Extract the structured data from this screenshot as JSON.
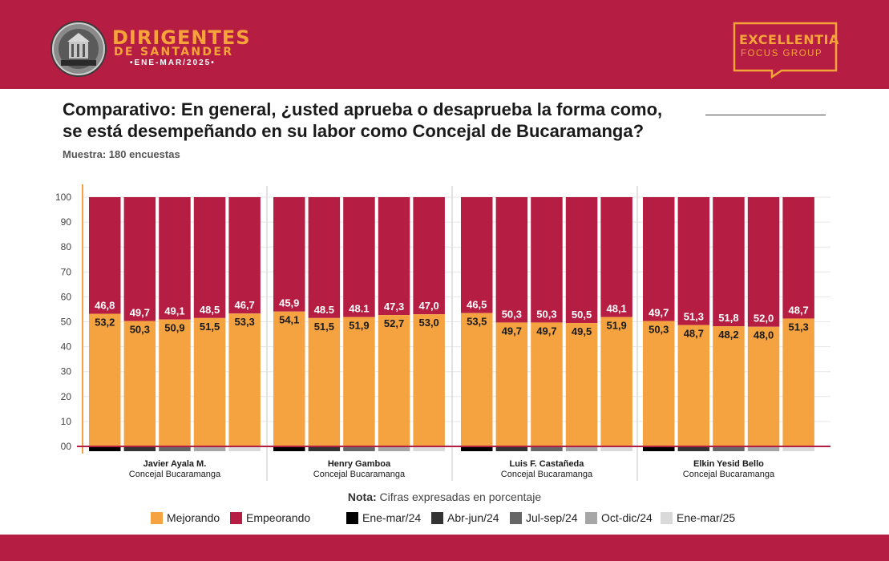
{
  "header": {
    "brand_title": "DIRIGENTES",
    "brand_subtitle": "DE SANTANDER",
    "brand_period": "•ENE-MAR/2025•",
    "seal_text": "SANTANDER",
    "company_name": "EXCELLENTIA",
    "company_sub": "FOCUS GROUP",
    "colors": {
      "bar": "#b51d42",
      "brand": "#f6a43a"
    }
  },
  "title_line1": "Comparativo: En general, ¿usted aprueba o desaprueba la forma como,",
  "title_line2": "se está desempeñando en su labor como Concejal de Bucaramanga?",
  "sample": "Muestra: 180 encuestas",
  "note_label": "Nota:",
  "note_text": "Cifras expresadas en porcentaje",
  "legend": {
    "series": [
      {
        "label": "Mejorando",
        "color": "#f4a340"
      },
      {
        "label": "Empeorando",
        "color": "#b51d42"
      }
    ],
    "periods": [
      {
        "label": "Ene-mar/24",
        "color": "#000000"
      },
      {
        "label": "Abr-jun/24",
        "color": "#333333"
      },
      {
        "label": "Jul-sep/24",
        "color": "#666666"
      },
      {
        "label": "Oct-dic/24",
        "color": "#a6a6a6"
      },
      {
        "label": "Ene-mar/25",
        "color": "#d9d9d9"
      }
    ]
  },
  "chart_data": {
    "type": "bar",
    "stacked": true,
    "ylim": [
      0,
      100
    ],
    "yticks": [
      "00",
      "10",
      "20",
      "30",
      "40",
      "50",
      "60",
      "70",
      "80",
      "90",
      "100"
    ],
    "grid": true,
    "periods": [
      "Ene-mar/24",
      "Abr-jun/24",
      "Jul-sep/24",
      "Oct-dic/24",
      "Ene-mar/25"
    ],
    "groups": [
      {
        "name": "Javier Ayala M.",
        "role": "Concejal Bucaramanga",
        "mejorando": [
          53.2,
          50.3,
          50.9,
          51.5,
          53.3
        ],
        "empeorando": [
          46.8,
          49.7,
          49.1,
          48.5,
          46.7
        ],
        "mejorando_labels": [
          "53,2",
          "50,3",
          "50,9",
          "51,5",
          "53,3"
        ],
        "empeorando_labels": [
          "46,8",
          "49,7",
          "49,1",
          "48,5",
          "46,7"
        ]
      },
      {
        "name": "Henry Gamboa",
        "role": "Concejal Bucaramanga",
        "mejorando": [
          54.1,
          51.5,
          51.9,
          52.7,
          53.0
        ],
        "empeorando": [
          45.9,
          48.5,
          48.1,
          47.3,
          47.0
        ],
        "mejorando_labels": [
          "54,1",
          "51,5",
          "51,9",
          "52,7",
          "53,0"
        ],
        "empeorando_labels": [
          "45,9",
          "48.5",
          "48.1",
          "47,3",
          "47,0"
        ]
      },
      {
        "name": "Luis F. Castañeda",
        "role": "Concejal Bucaramanga",
        "mejorando": [
          53.5,
          49.7,
          49.7,
          49.5,
          51.9
        ],
        "empeorando": [
          46.5,
          50.3,
          50.3,
          50.5,
          48.1
        ],
        "mejorando_labels": [
          "53,5",
          "49,7",
          "49,7",
          "49,5",
          "51,9"
        ],
        "empeorando_labels": [
          "46,5",
          "50,3",
          "50,3",
          "50,5",
          "48,1"
        ]
      },
      {
        "name": "Elkin Yesid Bello",
        "role": "Concejal Bucaramanga",
        "mejorando": [
          50.3,
          48.7,
          48.2,
          48.0,
          51.3
        ],
        "empeorando": [
          49.7,
          51.3,
          51.8,
          52.0,
          48.7
        ],
        "mejorando_labels": [
          "50,3",
          "48,7",
          "48,2",
          "48,0",
          "51,3"
        ],
        "empeorando_labels": [
          "49,7",
          "51,3",
          "51,8",
          "52,0",
          "48,7"
        ]
      }
    ]
  }
}
